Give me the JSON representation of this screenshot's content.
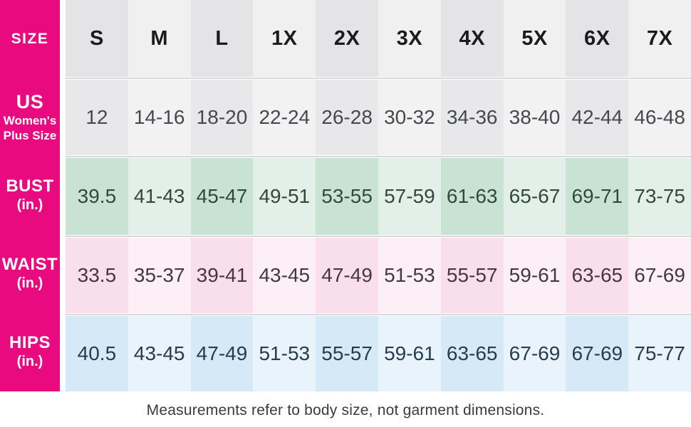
{
  "chart_data": {
    "type": "table",
    "corner_label": "SIZE",
    "columns": [
      "S",
      "M",
      "L",
      "1X",
      "2X",
      "3X",
      "4X",
      "5X",
      "6X",
      "7X"
    ],
    "rows": [
      {
        "label": "US",
        "sublabel_lines": [
          "Women's",
          "Plus Size"
        ],
        "values": [
          "12",
          "14-16",
          "18-20",
          "22-24",
          "26-28",
          "30-32",
          "34-36",
          "38-40",
          "42-44",
          "46-48"
        ]
      },
      {
        "label": "BUST",
        "sublabel_lines": [
          "(in.)"
        ],
        "values": [
          "39.5",
          "41-43",
          "45-47",
          "49-51",
          "53-55",
          "57-59",
          "61-63",
          "65-67",
          "69-71",
          "73-75"
        ]
      },
      {
        "label": "WAIST",
        "sublabel_lines": [
          "(in.)"
        ],
        "values": [
          "33.5",
          "35-37",
          "39-41",
          "43-45",
          "47-49",
          "51-53",
          "55-57",
          "59-61",
          "63-65",
          "67-69"
        ]
      },
      {
        "label": "HIPS",
        "sublabel_lines": [
          "(in.)"
        ],
        "values": [
          "40.5",
          "43-45",
          "47-49",
          "51-53",
          "55-57",
          "59-61",
          "63-65",
          "67-69",
          "67-69",
          "75-77"
        ]
      }
    ],
    "footnote": "Measurements refer to body size, not garment dimensions."
  },
  "style": {
    "brand_pink": "#EA0A80",
    "divider": "#D8D8DA",
    "label_text": "#FFFFFF",
    "footnote_text": "#3B3B3D",
    "header_bg_dark": "#E4E4E6",
    "header_bg_light": "#F0F0F1",
    "header_text": "#1B1B1D",
    "row_styles": [
      {
        "bg_dark": "#E8E8EA",
        "bg_light": "#F2F2F3",
        "text": "#45484C"
      },
      {
        "bg_dark": "#C8E3D3",
        "bg_light": "#E2F0E9",
        "text": "#31493C"
      },
      {
        "bg_dark": "#F9DEEC",
        "bg_light": "#FCF0F6",
        "text": "#463740"
      },
      {
        "bg_dark": "#D6E9F7",
        "bg_light": "#E9F3FB",
        "text": "#273C4E"
      }
    ]
  }
}
